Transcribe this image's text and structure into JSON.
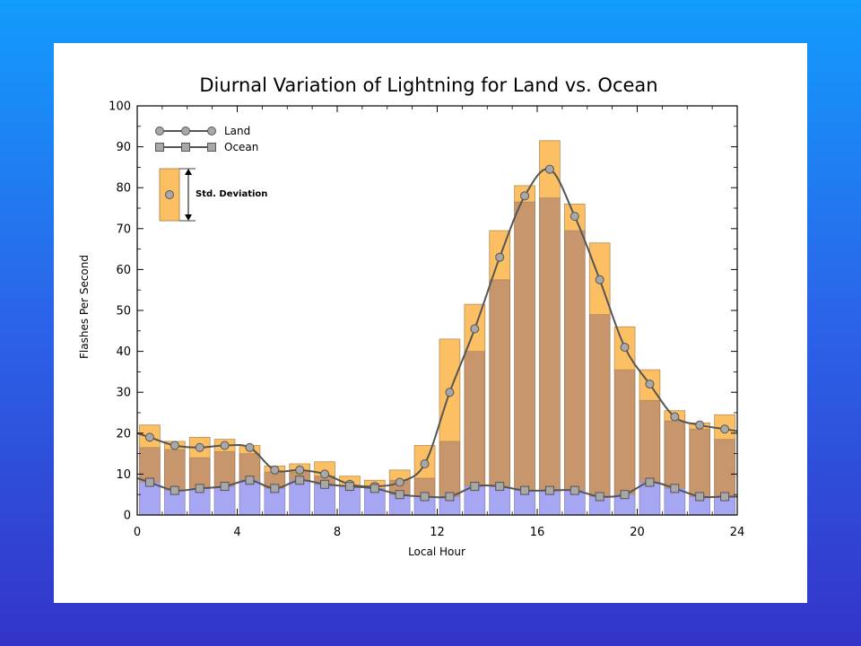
{
  "chart_data": {
    "type": "bar",
    "title": "Diurnal Variation of Lightning for Land vs. Ocean",
    "xlabel": "Local Hour",
    "ylabel": "Flashes Per Second",
    "xlim": [
      0,
      24
    ],
    "ylim": [
      0,
      100
    ],
    "x_ticks": [
      "0",
      "4",
      "8",
      "12",
      "16",
      "20",
      "24"
    ],
    "y_ticks": [
      "0",
      "10",
      "20",
      "30",
      "40",
      "50",
      "60",
      "70",
      "80",
      "90",
      "100"
    ],
    "grid": false,
    "legend": {
      "placement": "top-left",
      "land_label": "Land",
      "ocean_label": "Ocean",
      "std_label": "Std. Deviation"
    },
    "colors": {
      "land_bar": "#c8966c",
      "std_band": "#fcbf64",
      "ocean_bar": "#a6a6f2",
      "line": "#555555",
      "marker": "#a8a8a8"
    },
    "x": [
      0.5,
      1.5,
      2.5,
      3.5,
      4.5,
      5.5,
      6.5,
      7.5,
      8.5,
      9.5,
      10.5,
      11.5,
      12.5,
      13.5,
      14.5,
      15.5,
      16.5,
      17.5,
      18.5,
      19.5,
      20.5,
      21.5,
      22.5,
      23.5
    ],
    "series": [
      {
        "name": "Land",
        "values": [
          19,
          17,
          16.5,
          17,
          16.5,
          11,
          11,
          10,
          7.5,
          7,
          8,
          12.5,
          30,
          45.5,
          63,
          78,
          84.5,
          73,
          57.5,
          41,
          32,
          24,
          22,
          21
        ],
        "std_low": [
          16.5,
          16,
          14,
          15.5,
          15,
          10.5,
          10.5,
          9.5,
          7,
          6.5,
          8.5,
          9,
          18,
          40,
          57.5,
          76.5,
          77.5,
          69.5,
          49,
          35.5,
          28,
          23,
          21,
          18.5
        ],
        "std_high": [
          22,
          18,
          19,
          18.5,
          17,
          12,
          12.5,
          13,
          9.5,
          8.5,
          11,
          17,
          43,
          51.5,
          69.5,
          80.5,
          91.5,
          76,
          66.5,
          46,
          35.5,
          25.5,
          22.5,
          24.5
        ]
      },
      {
        "name": "Ocean",
        "values": [
          8,
          6,
          6.5,
          7,
          8.5,
          6.5,
          8.5,
          7.5,
          7,
          6.5,
          5,
          4.5,
          4.5,
          7,
          7,
          6,
          6,
          6,
          4.5,
          5,
          8,
          6.5,
          4.5,
          4.5
        ]
      }
    ]
  }
}
